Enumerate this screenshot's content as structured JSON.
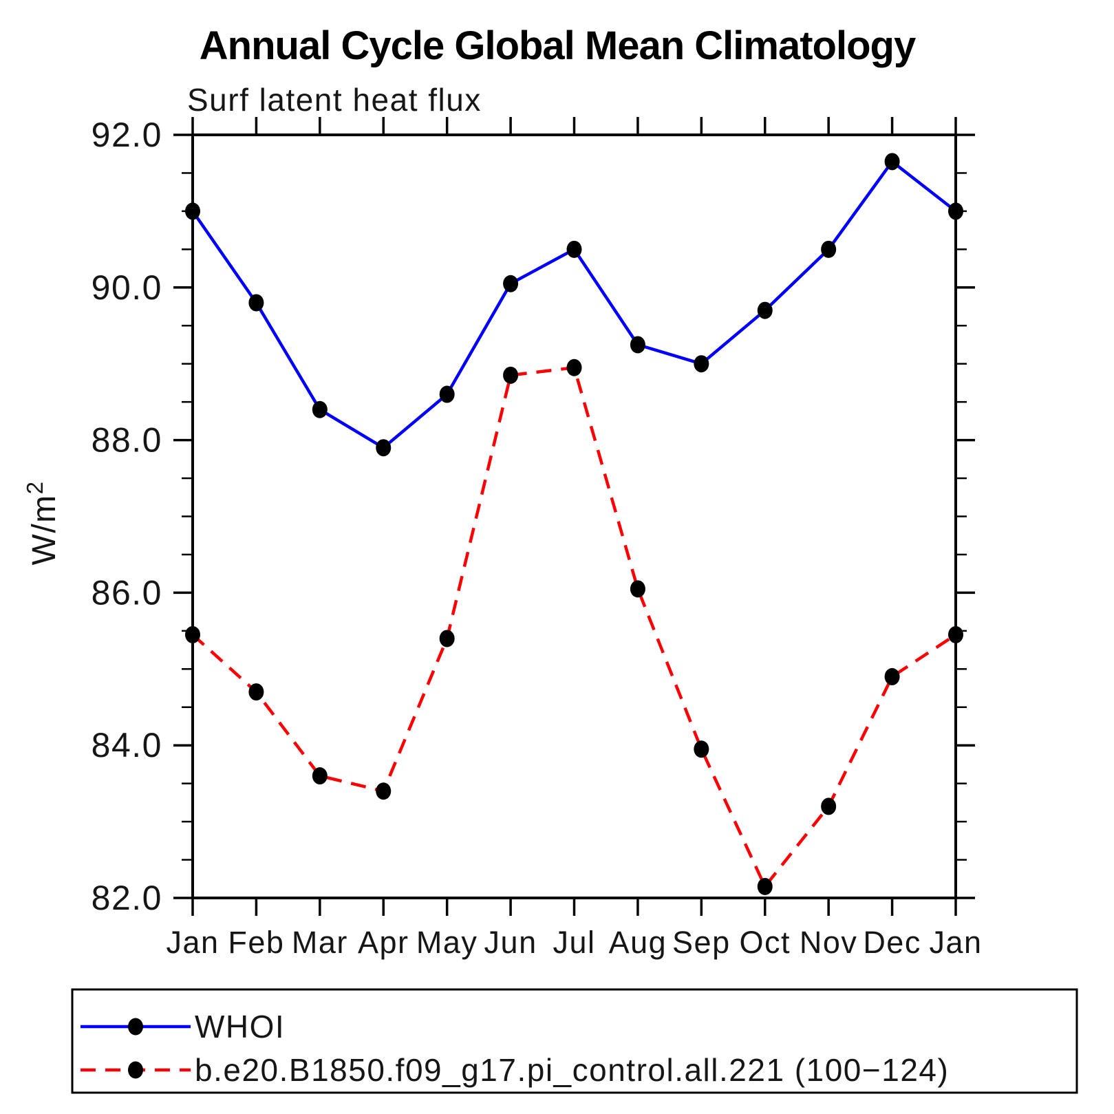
{
  "header": {
    "title": "Annual Cycle Global Mean Climatology",
    "subtitle": "Surf latent heat flux"
  },
  "colors": {
    "background": "#ffffff",
    "axis": "#000000",
    "marker": "#000000",
    "series_whoi": "#0000ff",
    "series_model": "#ff0000"
  },
  "chart_data": {
    "type": "line",
    "title": "Annual Cycle Global Mean Climatology",
    "subtitle": "Surf latent heat flux",
    "ylabel": "W/m²",
    "ylabel_base": "W/m",
    "ylabel_exp": "2",
    "xlabel": "",
    "categories": [
      "Jan",
      "Feb",
      "Mar",
      "Apr",
      "May",
      "Jun",
      "Jul",
      "Aug",
      "Sep",
      "Oct",
      "Nov",
      "Dec",
      "Jan"
    ],
    "series": [
      {
        "name": "WHOI",
        "color": "#0000ff",
        "line_style": "solid",
        "marker": "filled-circle",
        "marker_color": "#000000",
        "values": [
          91.0,
          89.8,
          88.4,
          87.9,
          88.6,
          90.05,
          90.5,
          89.25,
          89.0,
          89.7,
          90.5,
          91.65,
          91.0
        ]
      },
      {
        "name": "b.e20.B1850.f09_g17.pi_control.all.221 (100−124)",
        "color": "#ff0000",
        "line_style": "dashed",
        "marker": "filled-circle",
        "marker_color": "#000000",
        "values": [
          85.45,
          84.7,
          83.6,
          83.4,
          85.4,
          88.85,
          88.95,
          86.05,
          83.95,
          82.15,
          83.2,
          84.9,
          85.45
        ]
      }
    ],
    "ylim": [
      82.0,
      92.0
    ],
    "yticks_major": [
      82.0,
      84.0,
      86.0,
      88.0,
      90.0,
      92.0
    ],
    "ytick_labels": [
      "82.0",
      "84.0",
      "86.0",
      "88.0",
      "90.0",
      "92.0"
    ],
    "y_minor_step": 0.5,
    "grid": false,
    "tick_style": "outward-all-four-sides",
    "legend_position": "bottom-left-box"
  }
}
